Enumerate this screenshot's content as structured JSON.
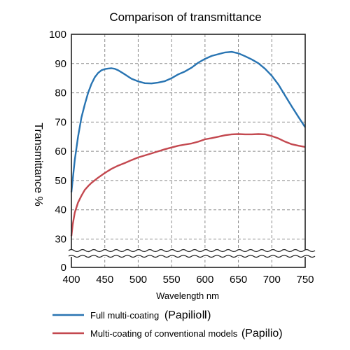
{
  "chart_data": {
    "type": "line",
    "title": "Comparison of transmittance",
    "xlabel": "Wavelength nm",
    "ylabel": "Transmittance %",
    "xlim": [
      400,
      750
    ],
    "ylim": [
      30,
      100
    ],
    "y_break_below": 30,
    "y_zero_tick": 0,
    "xticks": [
      400,
      450,
      500,
      550,
      600,
      650,
      700,
      750
    ],
    "yticks": [
      30,
      40,
      50,
      60,
      70,
      80,
      90,
      100
    ],
    "grid": true,
    "legend": "bottom",
    "series": [
      {
        "name_main": "Full multi-coating",
        "name_paren": "(PapilioⅡ)",
        "color": "#2874b2",
        "x": [
          400,
          405,
          410,
          415,
          420,
          425,
          430,
          435,
          440,
          445,
          450,
          455,
          460,
          465,
          470,
          480,
          490,
          500,
          510,
          520,
          530,
          540,
          550,
          560,
          570,
          580,
          590,
          600,
          610,
          620,
          630,
          640,
          650,
          660,
          670,
          680,
          690,
          700,
          710,
          720,
          730,
          740,
          750
        ],
        "y": [
          46,
          57,
          65,
          71.5,
          76,
          80,
          83,
          85.3,
          86.8,
          87.7,
          88.1,
          88.3,
          88.4,
          88.2,
          87.7,
          86.3,
          84.8,
          83.9,
          83.3,
          83.2,
          83.5,
          84,
          85,
          86.3,
          87.3,
          88.6,
          90.3,
          91.6,
          92.6,
          93.2,
          93.8,
          94,
          93.5,
          92.5,
          91.4,
          90.1,
          88.2,
          85.8,
          82.8,
          79,
          75.3,
          71.7,
          68.2
        ]
      },
      {
        "name_main": "Multi-coating of conventional models",
        "name_paren": "(Papilio)",
        "color": "#c3484f",
        "x": [
          400,
          402,
          405,
          410,
          415,
          420,
          425,
          430,
          440,
          450,
          460,
          470,
          480,
          490,
          500,
          510,
          520,
          530,
          540,
          550,
          560,
          570,
          580,
          590,
          600,
          610,
          620,
          630,
          640,
          650,
          660,
          670,
          680,
          690,
          700,
          710,
          720,
          730,
          740,
          750
        ],
        "y": [
          31,
          35,
          39,
          42.5,
          44.8,
          46.8,
          48.1,
          49.2,
          51,
          52.6,
          54,
          55.1,
          56,
          57,
          57.9,
          58.6,
          59.3,
          60,
          60.7,
          61.3,
          61.9,
          62.3,
          62.7,
          63.3,
          64.1,
          64.5,
          65,
          65.5,
          65.8,
          65.9,
          65.8,
          65.8,
          65.9,
          65.8,
          65.2,
          64.4,
          63.3,
          62.4,
          61.9,
          61.5
        ]
      }
    ]
  }
}
